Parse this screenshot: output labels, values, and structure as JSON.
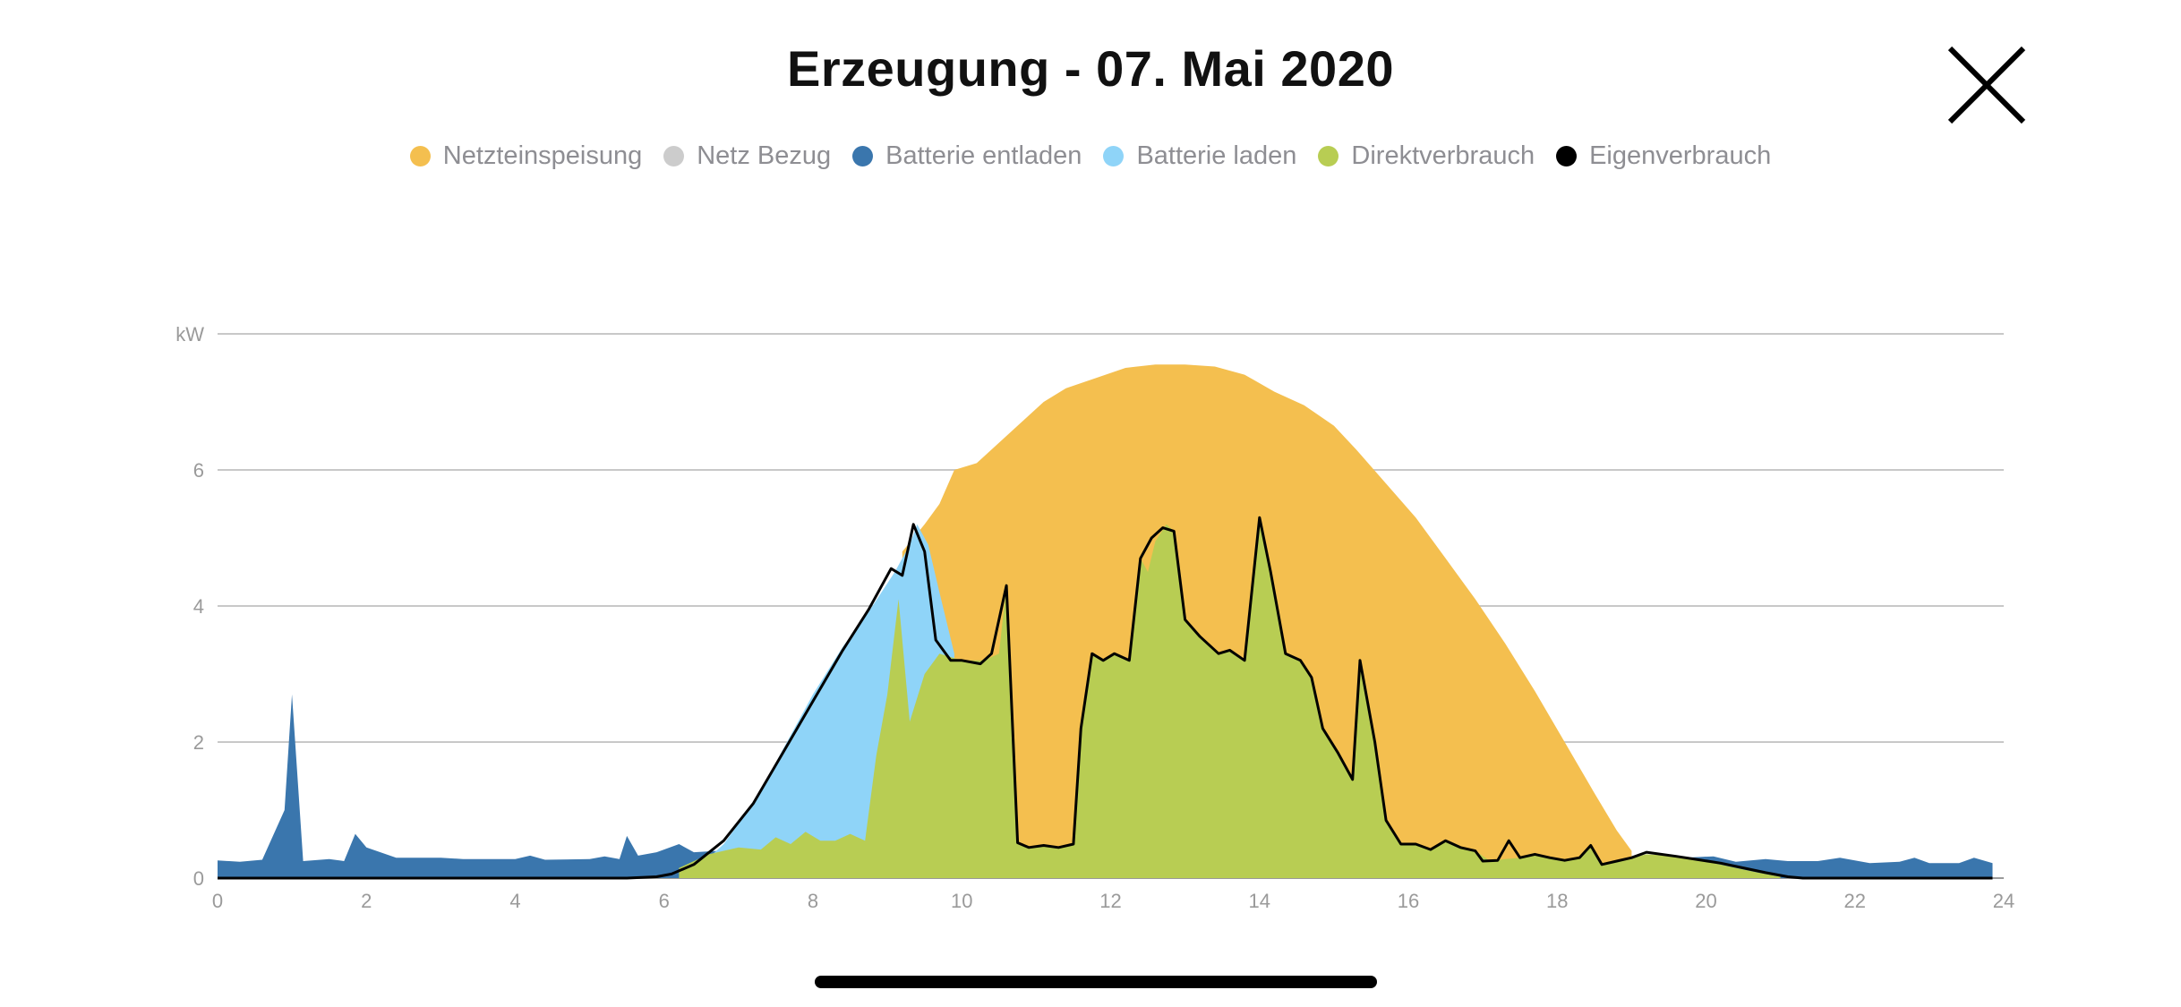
{
  "header": {
    "title": "Erzeugung - 07. Mai 2020",
    "close_icon": "close-icon"
  },
  "colors": {
    "Netzteinspeisung": "#f4bf4f",
    "Netz Bezug": "#cccccc",
    "Batterie entladen": "#3a76ad",
    "Batterie laden": "#8fd4f8",
    "Direktverbrauch": "#b8cd53",
    "Eigenverbrauch": "#000000"
  },
  "chart_data": {
    "type": "area",
    "ylabel": "kW",
    "xlim": [
      0,
      24
    ],
    "ylim": [
      0,
      8
    ],
    "x_ticks": [
      "0",
      "2",
      "4",
      "6",
      "8",
      "10",
      "12",
      "14",
      "16",
      "18",
      "20",
      "22",
      "24"
    ],
    "y_ticks": [
      "0",
      "2",
      "4",
      "6"
    ],
    "grid": true,
    "legend_placement": "top-center",
    "legend": [
      "Netzteinspeisung",
      "Netz Bezug",
      "Batterie entladen",
      "Batterie laden",
      "Direktverbrauch",
      "Eigenverbrauch"
    ],
    "series": [
      {
        "name": "Batterie entladen",
        "kind": "area",
        "points": [
          [
            0,
            0.26
          ],
          [
            0.3,
            0.24
          ],
          [
            0.6,
            0.27
          ],
          [
            0.9,
            1.0
          ],
          [
            1.0,
            2.7
          ],
          [
            1.15,
            0.25
          ],
          [
            1.5,
            0.28
          ],
          [
            1.7,
            0.25
          ],
          [
            1.85,
            0.65
          ],
          [
            2.0,
            0.45
          ],
          [
            2.4,
            0.3
          ],
          [
            3.0,
            0.3
          ],
          [
            3.3,
            0.28
          ],
          [
            4.0,
            0.28
          ],
          [
            4.2,
            0.33
          ],
          [
            4.4,
            0.27
          ],
          [
            5.0,
            0.28
          ],
          [
            5.2,
            0.32
          ],
          [
            5.4,
            0.28
          ],
          [
            5.5,
            0.62
          ],
          [
            5.65,
            0.33
          ],
          [
            5.9,
            0.38
          ],
          [
            6.2,
            0.5
          ],
          [
            6.4,
            0.38
          ],
          [
            6.7,
            0.4
          ],
          [
            6.9,
            0.0
          ],
          [
            19.0,
            0.0
          ],
          [
            19.3,
            0.33
          ],
          [
            19.7,
            0.3
          ],
          [
            20.1,
            0.32
          ],
          [
            20.4,
            0.24
          ],
          [
            20.8,
            0.28
          ],
          [
            21.1,
            0.25
          ],
          [
            21.5,
            0.25
          ],
          [
            21.8,
            0.3
          ],
          [
            22.2,
            0.22
          ],
          [
            22.6,
            0.24
          ],
          [
            22.8,
            0.3
          ],
          [
            23.0,
            0.22
          ],
          [
            23.4,
            0.22
          ],
          [
            23.6,
            0.3
          ],
          [
            23.85,
            0.22
          ]
        ]
      },
      {
        "name": "Netzteinspeisung",
        "kind": "area",
        "points": [
          [
            9.2,
            4.8
          ],
          [
            9.5,
            5.2
          ],
          [
            9.7,
            5.5
          ],
          [
            9.9,
            6.0
          ],
          [
            10.2,
            6.1
          ],
          [
            10.5,
            6.4
          ],
          [
            10.8,
            6.7
          ],
          [
            11.1,
            7.0
          ],
          [
            11.4,
            7.2
          ],
          [
            11.8,
            7.35
          ],
          [
            12.2,
            7.5
          ],
          [
            12.6,
            7.55
          ],
          [
            13.0,
            7.55
          ],
          [
            13.4,
            7.52
          ],
          [
            13.8,
            7.4
          ],
          [
            14.2,
            7.15
          ],
          [
            14.6,
            6.95
          ],
          [
            15.0,
            6.65
          ],
          [
            15.3,
            6.3
          ],
          [
            15.7,
            5.8
          ],
          [
            16.1,
            5.3
          ],
          [
            16.5,
            4.7
          ],
          [
            16.9,
            4.1
          ],
          [
            17.3,
            3.45
          ],
          [
            17.7,
            2.75
          ],
          [
            18.1,
            2.0
          ],
          [
            18.5,
            1.25
          ],
          [
            18.8,
            0.7
          ],
          [
            19.0,
            0.4
          ]
        ]
      },
      {
        "name": "Batterie laden",
        "kind": "area",
        "points": [
          [
            6.4,
            0.1
          ],
          [
            6.8,
            0.5
          ],
          [
            7.2,
            1.1
          ],
          [
            7.6,
            1.9
          ],
          [
            8.0,
            2.7
          ],
          [
            8.4,
            3.4
          ],
          [
            8.8,
            4.0
          ],
          [
            9.1,
            4.5
          ],
          [
            9.3,
            4.9
          ],
          [
            9.4,
            5.2
          ],
          [
            9.55,
            4.9
          ],
          [
            9.7,
            4.2
          ],
          [
            9.9,
            3.3
          ]
        ]
      },
      {
        "name": "Direktverbrauch",
        "kind": "area",
        "points": [
          [
            6.2,
            0.15
          ],
          [
            6.6,
            0.35
          ],
          [
            7.0,
            0.45
          ],
          [
            7.3,
            0.42
          ],
          [
            7.5,
            0.6
          ],
          [
            7.7,
            0.5
          ],
          [
            7.9,
            0.68
          ],
          [
            8.1,
            0.55
          ],
          [
            8.3,
            0.55
          ],
          [
            8.5,
            0.65
          ],
          [
            8.7,
            0.55
          ],
          [
            8.85,
            1.8
          ],
          [
            9.0,
            2.7
          ],
          [
            9.15,
            4.1
          ],
          [
            9.3,
            2.3
          ],
          [
            9.5,
            3.0
          ],
          [
            9.7,
            3.3
          ],
          [
            10.0,
            3.2
          ],
          [
            10.3,
            3.2
          ],
          [
            10.5,
            3.3
          ],
          [
            10.6,
            4.3
          ],
          [
            10.75,
            0.52
          ],
          [
            10.9,
            0.45
          ],
          [
            11.1,
            0.48
          ],
          [
            11.3,
            0.45
          ],
          [
            11.5,
            0.5
          ],
          [
            11.6,
            2.2
          ],
          [
            11.75,
            3.3
          ],
          [
            11.9,
            3.2
          ],
          [
            12.05,
            3.3
          ],
          [
            12.25,
            3.2
          ],
          [
            12.4,
            4.7
          ],
          [
            12.5,
            4.5
          ],
          [
            12.6,
            4.95
          ],
          [
            12.75,
            5.2
          ],
          [
            12.85,
            5.1
          ],
          [
            13.0,
            3.8
          ],
          [
            13.2,
            3.55
          ],
          [
            13.45,
            3.3
          ],
          [
            13.6,
            3.35
          ],
          [
            13.8,
            3.2
          ],
          [
            14.0,
            5.3
          ],
          [
            14.15,
            4.5
          ],
          [
            14.35,
            3.3
          ],
          [
            14.55,
            3.2
          ],
          [
            14.7,
            2.95
          ],
          [
            14.85,
            2.2
          ],
          [
            15.05,
            1.85
          ],
          [
            15.25,
            1.45
          ],
          [
            15.35,
            3.2
          ],
          [
            15.55,
            2.0
          ],
          [
            15.7,
            0.85
          ],
          [
            15.9,
            0.5
          ],
          [
            16.1,
            0.5
          ],
          [
            16.3,
            0.42
          ],
          [
            16.5,
            0.55
          ],
          [
            16.7,
            0.45
          ],
          [
            16.9,
            0.4
          ],
          [
            17.1,
            0.25
          ],
          [
            17.3,
            0.28
          ],
          [
            17.5,
            0.3
          ],
          [
            17.7,
            0.35
          ],
          [
            17.9,
            0.3
          ],
          [
            18.1,
            0.26
          ],
          [
            18.3,
            0.3
          ],
          [
            18.45,
            0.48
          ],
          [
            18.6,
            0.2
          ],
          [
            18.8,
            0.25
          ],
          [
            19.0,
            0.3
          ],
          [
            19.2,
            0.35
          ],
          [
            19.5,
            0.33
          ],
          [
            19.8,
            0.3
          ],
          [
            20.1,
            0.22
          ],
          [
            20.4,
            0.15
          ],
          [
            20.7,
            0.08
          ],
          [
            21.0,
            0.02
          ]
        ]
      },
      {
        "name": "Eigenverbrauch",
        "kind": "line",
        "points": [
          [
            0,
            0
          ],
          [
            5.5,
            0
          ],
          [
            5.9,
            0.02
          ],
          [
            6.1,
            0.06
          ],
          [
            6.4,
            0.2
          ],
          [
            6.8,
            0.55
          ],
          [
            7.2,
            1.1
          ],
          [
            7.6,
            1.85
          ],
          [
            8.0,
            2.6
          ],
          [
            8.4,
            3.35
          ],
          [
            8.75,
            3.95
          ],
          [
            9.05,
            4.55
          ],
          [
            9.2,
            4.45
          ],
          [
            9.35,
            5.2
          ],
          [
            9.5,
            4.8
          ],
          [
            9.65,
            3.5
          ],
          [
            9.85,
            3.2
          ],
          [
            10.0,
            3.2
          ],
          [
            10.25,
            3.15
          ],
          [
            10.4,
            3.3
          ],
          [
            10.6,
            4.3
          ],
          [
            10.75,
            0.52
          ],
          [
            10.9,
            0.45
          ],
          [
            11.1,
            0.48
          ],
          [
            11.3,
            0.45
          ],
          [
            11.5,
            0.5
          ],
          [
            11.6,
            2.2
          ],
          [
            11.75,
            3.3
          ],
          [
            11.9,
            3.2
          ],
          [
            12.05,
            3.3
          ],
          [
            12.25,
            3.2
          ],
          [
            12.4,
            4.7
          ],
          [
            12.55,
            5.0
          ],
          [
            12.7,
            5.15
          ],
          [
            12.85,
            5.1
          ],
          [
            13.0,
            3.8
          ],
          [
            13.2,
            3.55
          ],
          [
            13.45,
            3.3
          ],
          [
            13.6,
            3.35
          ],
          [
            13.8,
            3.2
          ],
          [
            14.0,
            5.3
          ],
          [
            14.15,
            4.5
          ],
          [
            14.35,
            3.3
          ],
          [
            14.55,
            3.2
          ],
          [
            14.7,
            2.95
          ],
          [
            14.85,
            2.2
          ],
          [
            15.05,
            1.85
          ],
          [
            15.25,
            1.45
          ],
          [
            15.35,
            3.2
          ],
          [
            15.55,
            2.0
          ],
          [
            15.7,
            0.85
          ],
          [
            15.9,
            0.5
          ],
          [
            16.1,
            0.5
          ],
          [
            16.3,
            0.42
          ],
          [
            16.5,
            0.55
          ],
          [
            16.7,
            0.45
          ],
          [
            16.9,
            0.4
          ],
          [
            17.0,
            0.25
          ],
          [
            17.2,
            0.26
          ],
          [
            17.35,
            0.55
          ],
          [
            17.5,
            0.3
          ],
          [
            17.7,
            0.35
          ],
          [
            17.9,
            0.3
          ],
          [
            18.1,
            0.26
          ],
          [
            18.3,
            0.3
          ],
          [
            18.45,
            0.48
          ],
          [
            18.6,
            0.2
          ],
          [
            18.8,
            0.25
          ],
          [
            19.0,
            0.3
          ],
          [
            19.2,
            0.38
          ],
          [
            19.6,
            0.32
          ],
          [
            19.9,
            0.27
          ],
          [
            20.2,
            0.22
          ],
          [
            20.5,
            0.15
          ],
          [
            20.8,
            0.08
          ],
          [
            21.1,
            0.02
          ],
          [
            21.3,
            0
          ],
          [
            23.85,
            0
          ]
        ]
      }
    ]
  }
}
